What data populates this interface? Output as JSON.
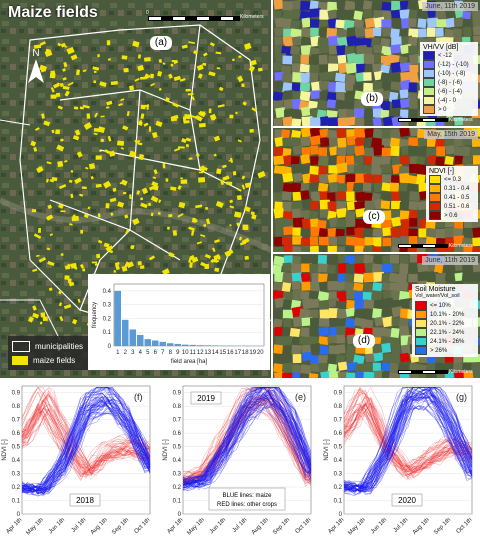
{
  "main_map": {
    "title": "Maize fields",
    "panel_label": "(a)",
    "north_label": "N",
    "scale_text": "Kilometers",
    "scale_zero": "0",
    "legend": {
      "municipalities_label": "municipalities",
      "maize_label": "maize fields",
      "maize_color": "#f2e600",
      "municipalities_color": "#ffffff"
    }
  },
  "histogram": {
    "ylabel": "frequency",
    "xlabel": "field area [ha]",
    "y_ticks": [
      "0",
      "0.1",
      "0.2",
      "0.3",
      "0.4"
    ],
    "x_ticks": [
      "1",
      "2",
      "3",
      "4",
      "5",
      "6",
      "7",
      "8",
      "9",
      "10",
      "11",
      "12",
      "13",
      "14",
      "15",
      "16",
      "17",
      "18",
      "19",
      "20"
    ]
  },
  "panel_b": {
    "label": "(b)",
    "date": "June, 11th 2019",
    "legend_title": "VH/VV [dB]",
    "legend": [
      {
        "label": "< -12",
        "color": "#1f1fb0"
      },
      {
        "label": "(-12) - (-10)",
        "color": "#7070ff"
      },
      {
        "label": "(-10) - (-8)",
        "color": "#9fc5ff"
      },
      {
        "label": "(-8) - (-6)",
        "color": "#6fd49e"
      },
      {
        "label": "(-6) - (-4)",
        "color": "#c7ef85"
      },
      {
        "label": "(-4) - 0",
        "color": "#f5f5a0"
      },
      {
        "label": "> 0",
        "color": "#f0a040"
      }
    ],
    "scale_text": "Kilometers"
  },
  "panel_c": {
    "label": "(c)",
    "date": "May, 15th 2019",
    "legend_title": "NDVI [-]",
    "legend": [
      {
        "label": "<= 0.3",
        "color": "#ffe000"
      },
      {
        "label": "0.31 - 0.4",
        "color": "#ffb300"
      },
      {
        "label": "0.41 - 0.5",
        "color": "#ff7a00"
      },
      {
        "label": "0.51 - 0.6",
        "color": "#d22a00"
      },
      {
        "label": "> 0.6",
        "color": "#8b0000"
      }
    ],
    "scale_text": "Kilometers"
  },
  "panel_d": {
    "label": "(d)",
    "date": "June, 11th 2019",
    "legend_title": "Soil Moisture",
    "legend_subtitle": "Vol_water/Vol_soil",
    "legend": [
      {
        "label": "<= 10%",
        "color": "#e00000"
      },
      {
        "label": "10.1% - 20%",
        "color": "#ff9a00"
      },
      {
        "label": "20.1% - 22%",
        "color": "#ffe566"
      },
      {
        "label": "22.1% - 24%",
        "color": "#b8f28a"
      },
      {
        "label": "24.1% - 26%",
        "color": "#39d0d0"
      },
      {
        "label": "> 26%",
        "color": "#2a6cf0"
      }
    ],
    "scale_text": "Kilometers"
  },
  "ndvi_charts": {
    "ylabel": "NDVI [-]",
    "y_ticks": [
      "0",
      "0.1",
      "0.2",
      "0.3",
      "0.4",
      "0.5",
      "0.6",
      "0.7",
      "0.8",
      "0.9"
    ],
    "x_ticks": [
      "Apr 1th",
      "May 1th",
      "Jun 1th",
      "Jul 1th",
      "Aug 1th",
      "Sep 1th",
      "Oct 1th"
    ],
    "charts": [
      {
        "label": "(f)",
        "year": "2018"
      },
      {
        "label": "(e)",
        "year": "2019",
        "note_blue": "BLUE lines: maize",
        "note_red": "RED lines: other crops"
      },
      {
        "label": "(g)",
        "year": "2020"
      }
    ]
  },
  "chart_data": [
    {
      "type": "bar",
      "xlabel": "field area [ha]",
      "ylabel": "frequency",
      "categories": [
        "1",
        "2",
        "3",
        "4",
        "5",
        "6",
        "7",
        "8",
        "9",
        "10",
        "11",
        "12",
        "13",
        "14",
        "15",
        "16",
        "17",
        "18",
        "19",
        "20"
      ],
      "values": [
        0.4,
        0.19,
        0.12,
        0.08,
        0.05,
        0.04,
        0.03,
        0.02,
        0.015,
        0.01,
        0.008,
        0.006,
        0.005,
        0.004,
        0.003,
        0.003,
        0.002,
        0.002,
        0.001,
        0.001
      ],
      "ylim": [
        0,
        0.45
      ],
      "bar_color": "#5b9bd5"
    },
    {
      "type": "line",
      "label": "(f)",
      "year": "2018",
      "ylabel": "NDVI [-]",
      "ylim": [
        0,
        0.95
      ],
      "x": [
        "Apr 1th",
        "May 1th",
        "Jun 1th",
        "Jul 1th",
        "Aug 1th",
        "Sep 1th",
        "Oct 1th"
      ],
      "series": [
        {
          "values": [
            0.2,
            0.18,
            0.4,
            0.8,
            0.9,
            0.7,
            0.35
          ],
          "color": "#1a1aee"
        },
        {
          "values": [
            0.55,
            0.85,
            0.55,
            0.3,
            0.45,
            0.5,
            0.45
          ],
          "color": "#ee2222"
        }
      ]
    },
    {
      "type": "line",
      "label": "(e)",
      "year": "2019",
      "ylabel": "NDVI [-]",
      "ylim": [
        0,
        0.95
      ],
      "x": [
        "Apr 1th",
        "May 1th",
        "Jun 1th",
        "Jul 1th",
        "Aug 1th",
        "Sep 1th",
        "Oct 1th"
      ],
      "series": [
        {
          "values": [
            0.22,
            0.25,
            0.5,
            0.8,
            0.92,
            0.7,
            0.3
          ],
          "color": "#1a1aee"
        },
        {
          "values": [
            0.25,
            0.3,
            0.55,
            0.82,
            0.9,
            0.6,
            0.25
          ],
          "color": "#ee2222"
        }
      ]
    },
    {
      "type": "line",
      "label": "(g)",
      "year": "2020",
      "ylabel": "NDVI [-]",
      "ylim": [
        0,
        0.95
      ],
      "x": [
        "Apr 1th",
        "May 1th",
        "Jun 1th",
        "Jul 1th",
        "Aug 1th",
        "Sep 1th",
        "Oct 1th"
      ],
      "series": [
        {
          "values": [
            0.2,
            0.18,
            0.45,
            0.85,
            0.9,
            0.65,
            0.3
          ],
          "color": "#1a1aee"
        },
        {
          "values": [
            0.6,
            0.85,
            0.5,
            0.3,
            0.4,
            0.5,
            0.45
          ],
          "color": "#ee2222"
        }
      ]
    }
  ]
}
